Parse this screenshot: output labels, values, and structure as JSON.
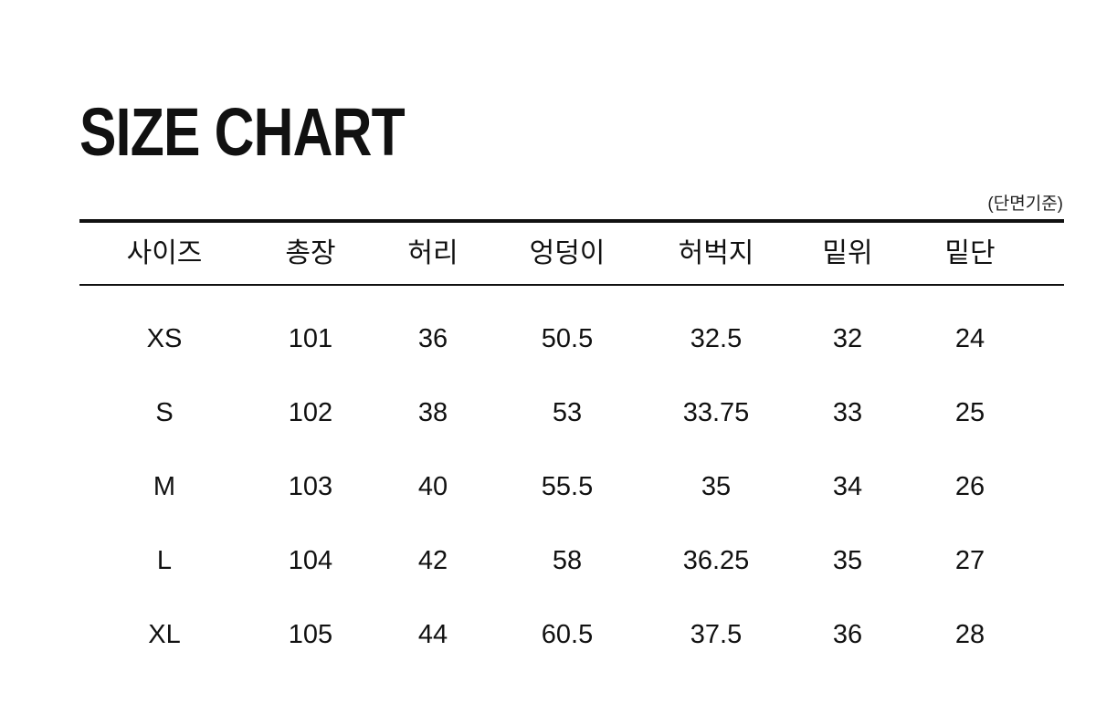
{
  "title": "SIZE CHART",
  "note": "(단면기준)",
  "table": {
    "headers": [
      "사이즈",
      "총장",
      "허리",
      "엉덩이",
      "허벅지",
      "밑위",
      "밑단"
    ],
    "rows": [
      [
        "XS",
        "101",
        "36",
        "50.5",
        "32.5",
        "32",
        "24"
      ],
      [
        "S",
        "102",
        "38",
        "53",
        "33.75",
        "33",
        "25"
      ],
      [
        "M",
        "103",
        "40",
        "55.5",
        "35",
        "34",
        "26"
      ],
      [
        "L",
        "104",
        "42",
        "58",
        "36.25",
        "35",
        "27"
      ],
      [
        "XL",
        "105",
        "44",
        "60.5",
        "37.5",
        "36",
        "28"
      ]
    ]
  }
}
